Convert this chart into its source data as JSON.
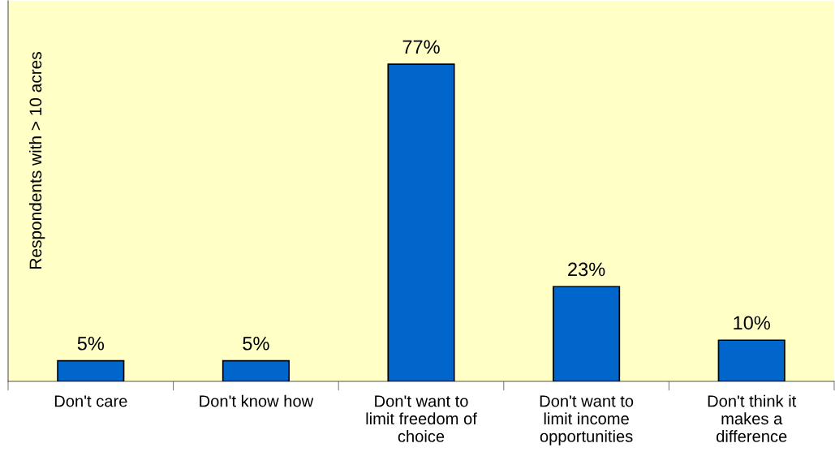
{
  "chart_data": {
    "type": "bar",
    "ylabel": "Respondents with > 10 acres",
    "categories": [
      "Don't care",
      "Don't know how",
      "Don't want to\nlimit freedom of\nchoice",
      "Don't want to\nlimit income\nopportunities",
      "Don't think it\nmakes a\ndifference"
    ],
    "values": [
      5,
      5,
      77,
      23,
      10
    ],
    "color": "#0066cc",
    "value_labels": [
      "5%",
      "5%",
      "77%",
      "23%",
      "10%"
    ],
    "grid": false,
    "legend": false
  }
}
